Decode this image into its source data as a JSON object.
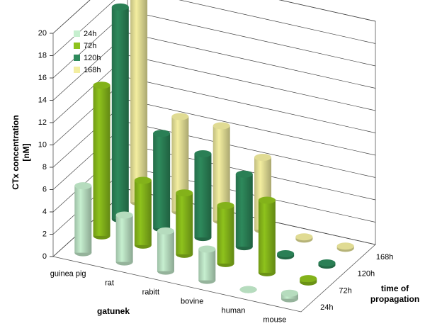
{
  "chart_data": {
    "type": "bar3d",
    "y_label": "CTx concentration [nM]",
    "x_label": "gatunek",
    "z_label": "time of propagation",
    "categories": [
      "guinea pig",
      "rat",
      "rabitt",
      "bovine",
      "human",
      "mouse"
    ],
    "series": [
      {
        "name": "24h",
        "color": "#c6efcf",
        "values": [
          6,
          4.2,
          3.6,
          2.8,
          0,
          0.5
        ]
      },
      {
        "name": "72h",
        "color": "#8ec21c",
        "values": [
          13.5,
          5.8,
          5.5,
          5.2,
          6.5,
          0.3
        ]
      },
      {
        "name": "120h",
        "color": "#2e8a5c",
        "values": [
          19,
          8.5,
          7.5,
          6.5,
          0.2,
          0.2
        ]
      },
      {
        "name": "168h",
        "color": "#f3eea0",
        "values": [
          20,
          8.5,
          8.5,
          6.5,
          0.2,
          0.2
        ]
      }
    ],
    "ylim": [
      0,
      20
    ],
    "yticks": [
      0,
      2,
      4,
      6,
      8,
      10,
      12,
      14,
      16,
      18,
      20
    ],
    "grid": true,
    "legend": "top-left"
  }
}
